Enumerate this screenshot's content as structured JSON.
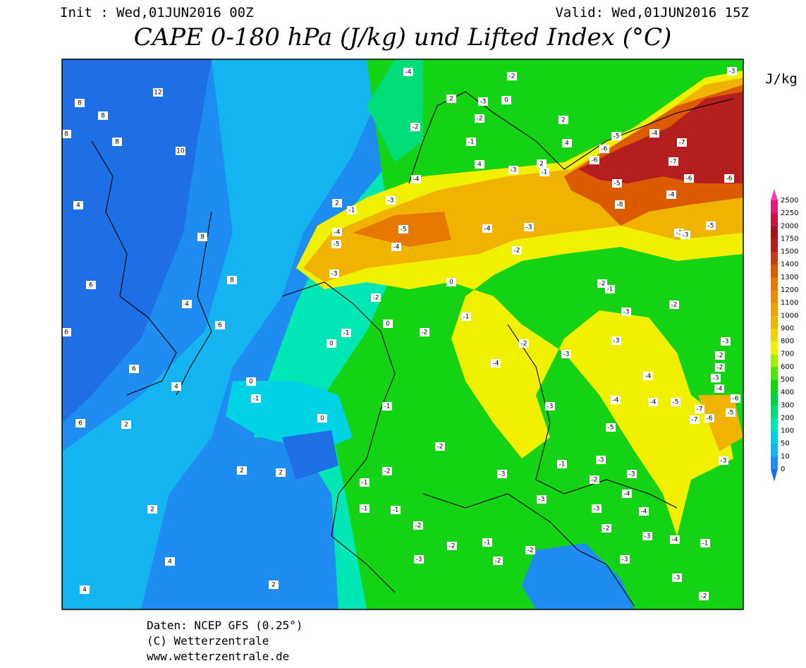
{
  "header": {
    "init": "Init : Wed,01JUN2016 00Z",
    "valid": "Valid: Wed,01JUN2016 15Z",
    "title": "CAPE 0-180 hPa (J/kg) und Lifted Index (°C)"
  },
  "colorbar": {
    "unit": "J/kg",
    "levels": [
      "0",
      "10",
      "50",
      "100",
      "200",
      "300",
      "400",
      "500",
      "600",
      "700",
      "800",
      "900",
      "1000",
      "1100",
      "1200",
      "1300",
      "1400",
      "1500",
      "1750",
      "2000",
      "2250",
      "2500"
    ],
    "colors": [
      "#1e6ee6",
      "#1e8cf0",
      "#14b4f0",
      "#00d2e6",
      "#00e6b4",
      "#00dc78",
      "#00d23c",
      "#14d214",
      "#50e600",
      "#a0f000",
      "#f0f000",
      "#f0d200",
      "#f0b400",
      "#f0a000",
      "#eb8c00",
      "#e67800",
      "#dc5a00",
      "#c83c14",
      "#b41e1e",
      "#a01414",
      "#c81446",
      "#dc1e78",
      "#f03ca0"
    ]
  },
  "map": {
    "li_labels": [
      "12",
      "8",
      "8",
      "8",
      "8",
      "10",
      "4",
      "8",
      "6",
      "4",
      "8",
      "6",
      "6",
      "6",
      "4",
      "6",
      "2",
      "2",
      "2",
      "2",
      "4",
      "4",
      "2",
      "0",
      "-1",
      "0",
      "0",
      "-1",
      "0",
      "-2",
      "0",
      "-1",
      "-2",
      "-1",
      "-2",
      "-2",
      "-1",
      "-1",
      "-1",
      "-2",
      "-2",
      "-3",
      "-1",
      "-2",
      "-2",
      "-3",
      "-1",
      "-3",
      "-3",
      "-2",
      "-4",
      "-4",
      "-3",
      "-4",
      "-3",
      "-3",
      "-2",
      "-1",
      "-3",
      "-3",
      "-2",
      "-3",
      "-5",
      "-3",
      "-4",
      "-4",
      "-5",
      "-7",
      "-7",
      "-6",
      "-5",
      "-6",
      "-4",
      "-3",
      "-2",
      "-2",
      "-3",
      "-4",
      "-3",
      "-2",
      "-4",
      "-3",
      "-3",
      "-2",
      "-2",
      "-1",
      "-2",
      "-3",
      "-4",
      "-5",
      "-4",
      "-4",
      "-5",
      "-3",
      "-1",
      "2",
      "-3",
      "-4",
      "-3",
      "2",
      "-1",
      "4",
      "-1",
      "-2",
      "-2",
      "-3",
      "0",
      "-2",
      "-4",
      "2",
      "2",
      "4",
      "-5",
      "-4",
      "-6",
      "-6",
      "-7",
      "-7",
      "-6",
      "-6",
      "-5",
      "-4",
      "-8",
      "-3",
      "-3",
      "-5",
      "-3"
    ]
  },
  "footer": {
    "lines": [
      "Daten: NCEP GFS (0.25°)",
      "(C) Wetterzentrale",
      "www.wetterzentrale.de"
    ]
  }
}
